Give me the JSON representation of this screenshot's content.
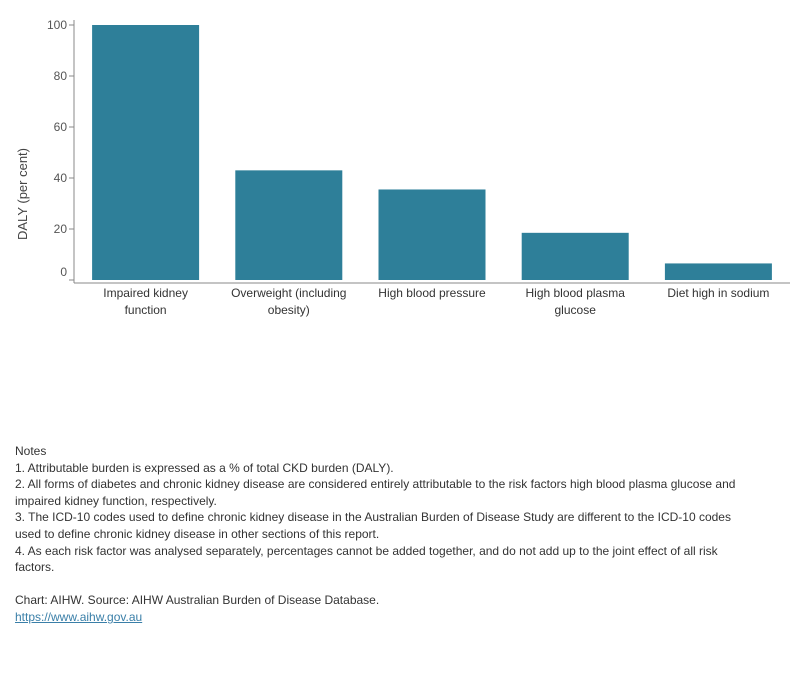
{
  "chart_data": {
    "type": "bar",
    "categories": [
      [
        "Impaired kidney",
        "function"
      ],
      [
        "Overweight (including",
        "obesity)"
      ],
      [
        "High blood pressure"
      ],
      [
        "High blood plasma",
        "glucose"
      ],
      [
        "Diet high in sodium"
      ]
    ],
    "values": [
      100,
      43,
      35.5,
      18.5,
      6.5
    ],
    "ylabel": "DALY (per cent)",
    "xlabel": "",
    "ylim": [
      0,
      100
    ],
    "yticks": [
      0,
      20,
      40,
      60,
      80,
      100
    ],
    "bar_color": "#2e7f99",
    "grid": false,
    "legend": "none"
  },
  "notes": {
    "heading": "Notes",
    "lines": [
      "1. Attributable burden is expressed as a % of total CKD burden (DALY).",
      "2. All forms of diabetes and chronic kidney disease are considered entirely attributable to the risk factors high blood plasma glucose and",
      "impaired kidney function, respectively.",
      "3. The ICD-10 codes used to define chronic kidney disease in the Australian Burden of Disease Study are different to the ICD-10 codes",
      "used to define chronic kidney disease in other sections of this report.",
      "4. As each risk factor was analysed separately, percentages cannot be added together, and do not add up to the joint effect of all risk",
      "factors."
    ],
    "source": "Chart: AIHW. Source: AIHW Australian Burden of Disease Database.",
    "link": "https://www.aihw.gov.au"
  }
}
